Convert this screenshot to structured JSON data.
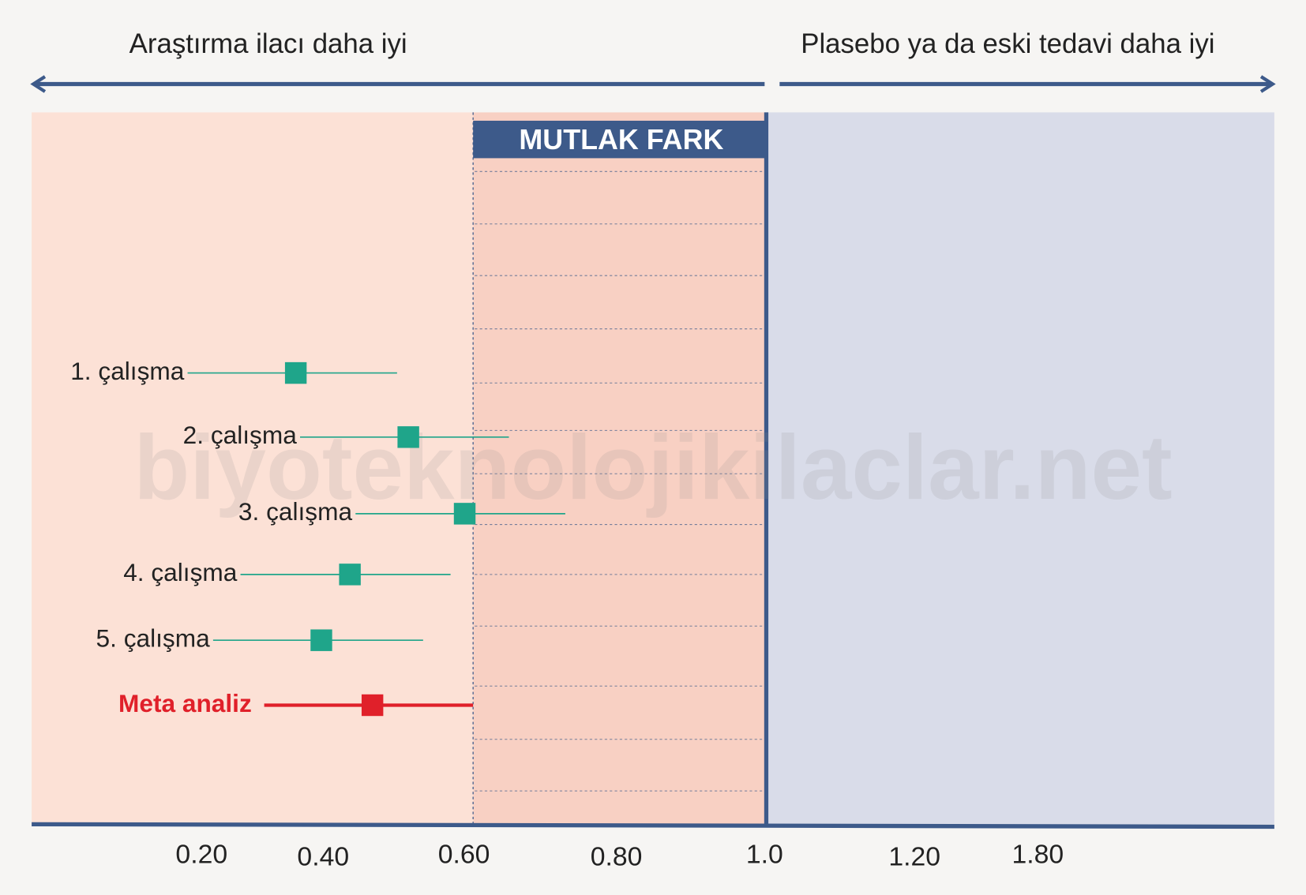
{
  "chart_data": {
    "type": "forest",
    "left_label": "Araştırma ilacı daha iyi",
    "right_label": "Plasebo ya da eski tedavi daha iyi",
    "region_label": "MUTLAK FARK",
    "watermark": "biyoteknolojikilaclar.net",
    "categories": [
      "1. çalışma",
      "2. çalışma",
      "3. çalışma",
      "4. çalışma",
      "5. çalışma",
      "Meta analiz"
    ],
    "values": [
      0.355,
      0.521,
      0.601,
      0.438,
      0.397,
      0.47
    ],
    "lower": [
      0.177,
      0.362,
      0.446,
      0.264,
      0.219,
      0.303
    ],
    "upper": [
      0.505,
      0.659,
      0.733,
      0.581,
      0.542,
      0.612
    ],
    "colors": [
      "#1fa58a",
      "#1fa58a",
      "#1fa58a",
      "#1fa58a",
      "#1fa58a",
      "#e0202a"
    ],
    "xticks": [
      {
        "value": 0.2,
        "label": "0.20"
      },
      {
        "value": 0.4,
        "label": "0.40"
      },
      {
        "value": 0.6,
        "label": "0.60"
      },
      {
        "value": 0.8,
        "label": "0.80"
      },
      {
        "value": 1,
        "label": "1.0"
      },
      {
        "value": 1.2,
        "label": "1.20"
      },
      {
        "value": 1.8,
        "label": "1.80"
      }
    ]
  }
}
